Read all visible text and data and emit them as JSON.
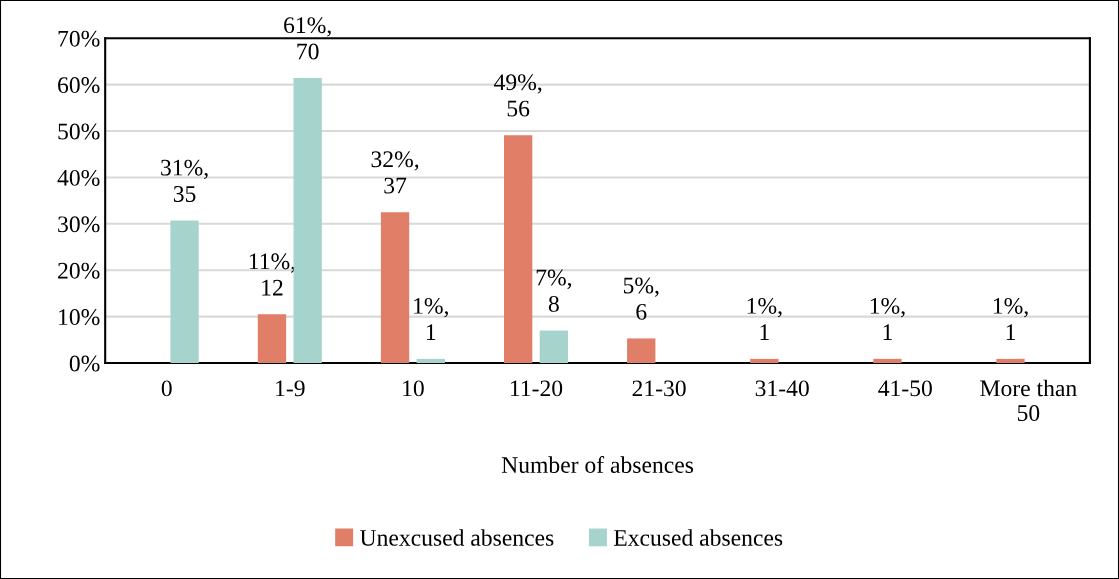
{
  "chart_data": {
    "type": "bar",
    "xlabel": "Number of absences",
    "categories": [
      "0",
      "1-9",
      "10",
      "11-20",
      "21-30",
      "31-40",
      "41-50",
      "More than\n50"
    ],
    "series": [
      {
        "name": "Unexcused absences",
        "color": "#e07e67",
        "values": [
          null,
          10.5,
          32.5,
          49.1,
          5.3,
          0.9,
          0.9,
          0.9
        ],
        "value_labels": [
          null,
          "11%,\n12",
          "32%,\n37",
          "49%,\n56",
          "5%,\n6",
          "1%,\n1",
          "1%,\n1",
          "1%,\n1"
        ]
      },
      {
        "name": "Excused absences",
        "color": "#a6d3cb",
        "values": [
          30.7,
          61.4,
          0.9,
          7.0,
          null,
          null,
          null,
          null
        ],
        "value_labels": [
          "31%,\n35",
          "61%,\n70",
          "1%,\n1",
          "7%,\n8",
          null,
          null,
          null,
          null
        ]
      }
    ],
    "ylim": [
      0,
      70
    ],
    "yticks": [
      {
        "value": 0,
        "label": "0%"
      },
      {
        "value": 10,
        "label": "10%"
      },
      {
        "value": 20,
        "label": "20%"
      },
      {
        "value": 30,
        "label": "30%"
      },
      {
        "value": 40,
        "label": "40%"
      },
      {
        "value": 50,
        "label": "50%"
      },
      {
        "value": 60,
        "label": "60%"
      },
      {
        "value": 70,
        "label": "70%"
      }
    ],
    "grid": "y",
    "legend": "bottom"
  }
}
